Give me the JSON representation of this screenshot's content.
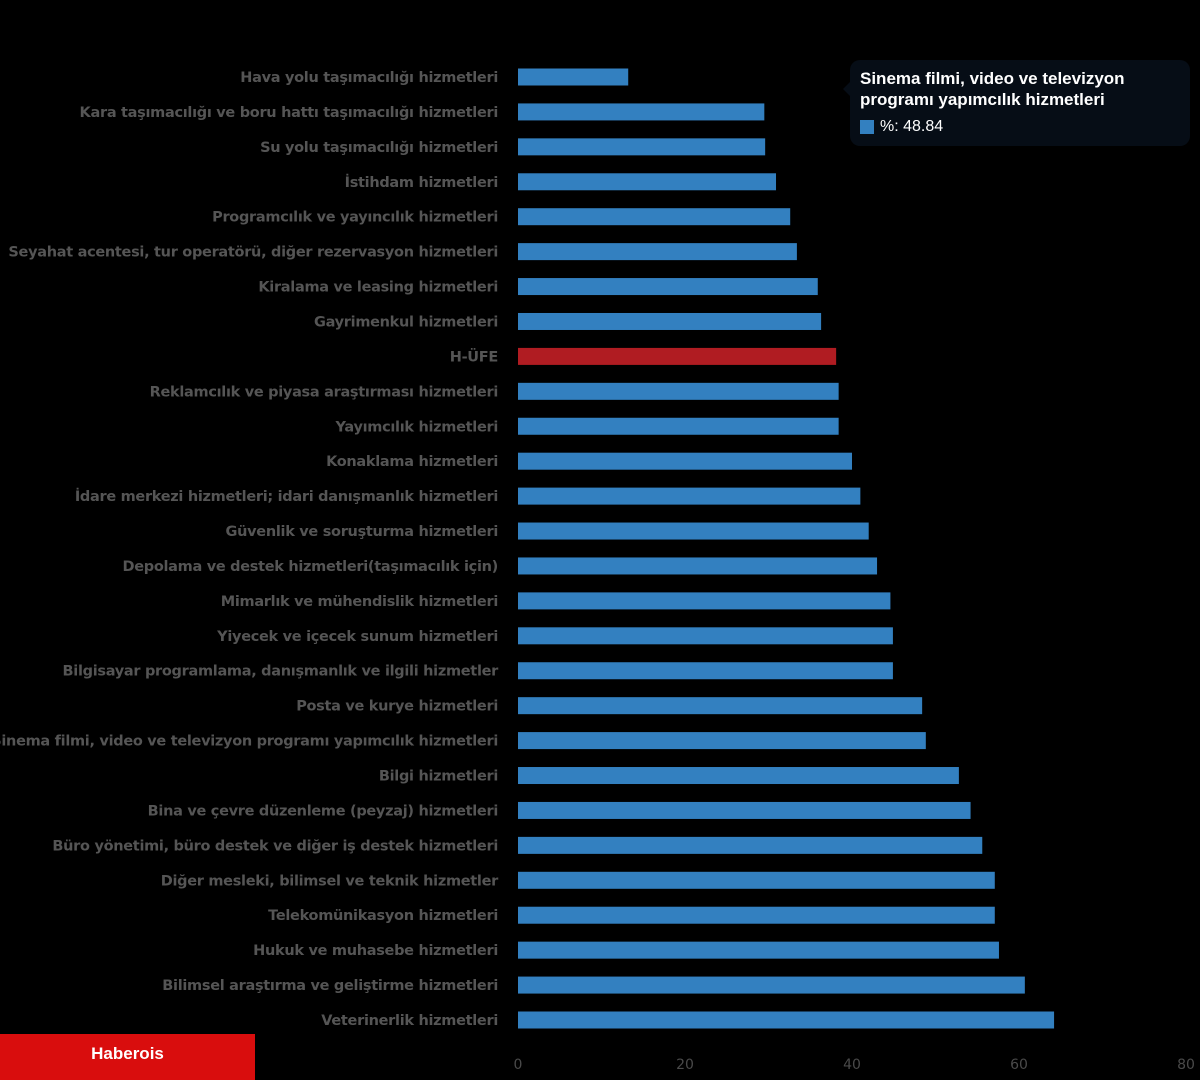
{
  "chart_data": {
    "type": "bar",
    "orientation": "horizontal",
    "title": "",
    "xlabel": "",
    "ylabel": "",
    "xlim": [
      0,
      80
    ],
    "x_ticks": [
      0,
      20,
      40,
      60,
      80
    ],
    "grid": false,
    "series_name": "%",
    "categories": [
      "Hava yolu taşımacılığı hizmetleri",
      "Kara taşımacılığı ve boru hattı taşımacılığı hizmetleri",
      "Su yolu taşımacılığı hizmetleri",
      "İstihdam hizmetleri",
      "Programcılık ve yayıncılık hizmetleri",
      "Seyahat acentesi, tur operatörü, diğer rezervasyon hizmetleri",
      "Kiralama ve leasing hizmetleri",
      "Gayrimenkul hizmetleri",
      "H-ÜFE",
      "Reklamcılık ve piyasa araştırması hizmetleri",
      "Yayımcılık hizmetleri",
      "Konaklama hizmetleri",
      "İdare merkezi hizmetleri; idari danışmanlık hizmetleri",
      "Güvenlik ve soruşturma hizmetleri",
      "Depolama ve destek hizmetleri(taşımacılık için)",
      "Mimarlık ve mühendislik hizmetleri",
      "Yiyecek ve içecek sunum hizmetleri",
      "Bilgisayar programlama, danışmanlık ve ilgili hizmetler",
      "Posta ve kurye hizmetleri",
      "Sinema filmi, video ve televizyon programı yapımcılık hizmetleri",
      "Bilgi hizmetleri",
      "Bina ve çevre düzenleme (peyzaj) hizmetleri",
      "Büro yönetimi, büro destek ve diğer iş destek hizmetleri",
      "Diğer mesleki, bilimsel ve teknik hizmetler",
      "Telekomünikasyon hizmetleri",
      "Hukuk ve muhasebe hizmetleri",
      "Bilimsel araştırma ve geliştirme hizmetleri",
      "Veterinerlik hizmetleri"
    ],
    "values": [
      13.2,
      29.5,
      29.6,
      30.9,
      32.6,
      33.4,
      35.9,
      36.3,
      38.1,
      38.4,
      38.4,
      40.0,
      41.0,
      42.0,
      43.0,
      44.6,
      44.9,
      44.9,
      48.4,
      48.84,
      52.8,
      54.2,
      55.6,
      57.1,
      57.1,
      57.6,
      60.7,
      64.2
    ],
    "highlight_category": "H-ÜFE",
    "colors": {
      "bar": "#3380c0",
      "highlight": "#b01c22",
      "label": "#555555",
      "background": "#000000"
    }
  },
  "tooltip": {
    "title": "Sinema filmi, video ve televizyon programı yapımcılık hizmetleri",
    "series_label": "%",
    "value_text": "%: 48.84",
    "swatch_color": "#3380c0"
  },
  "brand": {
    "label": "Haberois",
    "color": "#d90d0d"
  }
}
